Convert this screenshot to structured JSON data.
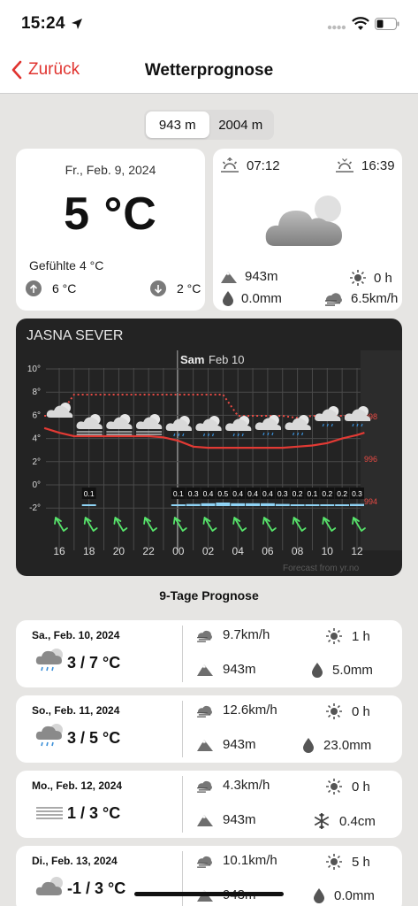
{
  "status": {
    "time": "15:24"
  },
  "nav": {
    "back_label": "Zurück",
    "title": "Wetterprognose"
  },
  "altitude_tabs": [
    "943 m",
    "2004 m"
  ],
  "current": {
    "date": "Fr., Feb. 9, 2024",
    "temperature": "5 °C",
    "feels_label": "Gefühlte",
    "feels_value": "4 °C",
    "max": "6 °C",
    "min": "2 °C"
  },
  "sun": {
    "sunrise": "07:12",
    "sunset": "16:39",
    "altitude": "943m",
    "sunshine": "0 h",
    "precipitation": "0.0mm",
    "wind": "6.5km/h"
  },
  "chart_data": {
    "type": "line",
    "title": "JASNA SEVER",
    "day_marker": "Sam",
    "day_marker_date": "Feb 10",
    "pressure_unit": "hPa",
    "credit": "Forecast from yr.no",
    "x_hours": [
      "16",
      "18",
      "20",
      "22",
      "00",
      "02",
      "04",
      "06",
      "08",
      "10",
      "12"
    ],
    "temp_ticks": [
      "10°",
      "8°",
      "6°",
      "4°",
      "2°",
      "0°",
      "-2°"
    ],
    "ylim": [
      -4,
      10
    ],
    "pressure_ticks": [
      "998",
      "996",
      "994"
    ],
    "series": [
      {
        "name": "temperature",
        "x": [
          15,
          16,
          17,
          18,
          19,
          20,
          21,
          22,
          23,
          0,
          1,
          2,
          3,
          4,
          5,
          6,
          7,
          8,
          9,
          10,
          11,
          12,
          12.5
        ],
        "values": [
          4.9,
          4.5,
          4.2,
          4.2,
          4.2,
          4.2,
          4.2,
          4.2,
          4.1,
          3.8,
          3.3,
          3.2,
          3.2,
          3.2,
          3.2,
          3.2,
          3.2,
          3.3,
          3.4,
          3.6,
          4.0,
          4.3,
          4.5
        ]
      },
      {
        "name": "pressure",
        "x": [
          15,
          16,
          17,
          18,
          19,
          20,
          21,
          22,
          23,
          0,
          1,
          2,
          3,
          4,
          5,
          6,
          7,
          8,
          9,
          10,
          11,
          12,
          12.5
        ],
        "values": [
          998,
          998,
          999,
          999,
          999,
          999,
          999,
          999,
          999,
          999,
          999,
          999,
          999,
          998,
          998,
          998,
          998,
          997.9,
          998,
          998,
          998,
          998,
          998
        ]
      }
    ],
    "precipitation_hours": [
      "18",
      "00",
      "01",
      "02",
      "03",
      "04",
      "05",
      "06",
      "07",
      "08",
      "09",
      "10",
      "11",
      "12"
    ],
    "precipitation": [
      "0.1",
      "0.1",
      "0.3",
      "0.4",
      "0.5",
      "0.4",
      "0.4",
      "0.4",
      "0.3",
      "0.2",
      "0.1",
      "0.2",
      "0.2",
      "0.3"
    ],
    "weather_hours": [
      "16",
      "18",
      "20",
      "22",
      "00",
      "02",
      "04",
      "06",
      "08",
      "10",
      "12"
    ],
    "weather_icons": [
      "cloudy",
      "cloud-fog",
      "cloud-fog",
      "cloud-fog",
      "cloud-light-rain",
      "cloud-light-rain",
      "cloud-light-rain",
      "cloud-light-rain",
      "cloud-light-rain",
      "cloud-light-rain",
      "cloud-light-rain"
    ],
    "wind_arrow_hours": [
      "16",
      "18",
      "20",
      "22",
      "00",
      "02",
      "04",
      "06",
      "08",
      "10",
      "12"
    ],
    "grid": true
  },
  "forecast_title": "9-Tage Prognose",
  "days": [
    {
      "date": "Sa., Feb. 10, 2024",
      "temp": "3 / 7 °C",
      "icon": "cloud-rain-icon",
      "wind": "9.7km/h",
      "sun": "1 h",
      "altitude": "943m",
      "extra": "5.0mm",
      "extra_icon": "drop-icon"
    },
    {
      "date": "So., Feb. 11, 2024",
      "temp": "3 / 5 °C",
      "icon": "cloud-rain-icon",
      "wind": "12.6km/h",
      "sun": "0 h",
      "altitude": "943m",
      "extra": "23.0mm",
      "extra_icon": "drop-icon"
    },
    {
      "date": "Mo., Feb. 12, 2024",
      "temp": "1 / 3 °C",
      "icon": "fog-icon",
      "wind": "4.3km/h",
      "sun": "0 h",
      "altitude": "943m",
      "extra": "0.4cm",
      "extra_icon": "snowflake-icon"
    },
    {
      "date": "Di., Feb. 13, 2024",
      "temp": "-1 / 3 °C",
      "icon": "cloudy-icon",
      "wind": "10.1km/h",
      "sun": "5 h",
      "altitude": "943m",
      "extra": "0.0mm",
      "extra_icon": "drop-icon"
    }
  ],
  "colors": {
    "accent": "#e0332f",
    "temperature_line": "#e23a34",
    "pressure_line": "#e84a44",
    "precip_bar": "#8fd3f5",
    "wind_arrow": "#57e36b",
    "chart_bg": "#232323"
  }
}
